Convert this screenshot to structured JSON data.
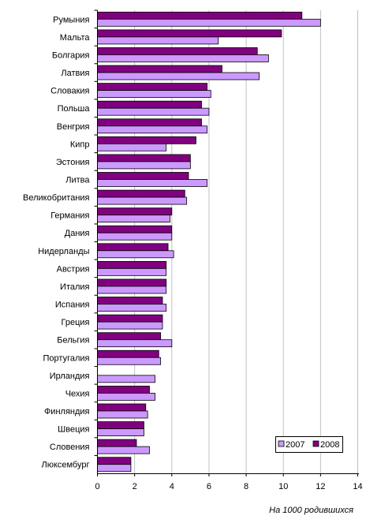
{
  "chart_data": {
    "type": "bar",
    "orientation": "horizontal",
    "categories": [
      "Румыния",
      "Мальта",
      "Болгария",
      "Латвия",
      "Словакия",
      "Польша",
      "Венгрия",
      "Кипр",
      "Эстония",
      "Литва",
      "Великобритания",
      "Германия",
      "Дания",
      "Нидерланды",
      "Австрия",
      "Италия",
      "Испания",
      "Греция",
      "Бельгия",
      "Португалия",
      "Ирландия",
      "Чехия",
      "Финляндия",
      "Швеция",
      "Словения",
      "Люксембург"
    ],
    "series": [
      {
        "name": "2007",
        "color": "#CC99FF",
        "values": [
          12.0,
          6.5,
          9.2,
          8.7,
          6.1,
          6.0,
          5.9,
          3.7,
          5.0,
          5.9,
          4.8,
          3.9,
          4.0,
          4.1,
          3.7,
          3.7,
          3.7,
          3.5,
          4.0,
          3.4,
          3.1,
          3.1,
          2.7,
          2.5,
          2.8,
          1.8
        ]
      },
      {
        "name": "2008",
        "color": "#800080",
        "values": [
          11.0,
          9.9,
          8.6,
          6.7,
          5.9,
          5.6,
          5.6,
          5.3,
          5.0,
          4.9,
          4.7,
          4.0,
          4.0,
          3.8,
          3.7,
          3.7,
          3.5,
          3.5,
          3.4,
          3.3,
          null,
          2.8,
          2.6,
          2.5,
          2.1,
          1.8
        ]
      }
    ],
    "xlim": [
      0,
      14
    ],
    "xticks": [
      0,
      2,
      4,
      6,
      8,
      10,
      12,
      14
    ],
    "xlabel": "На 1000 родившихся",
    "grid": "vertical",
    "legend_position": "bottom-right"
  }
}
